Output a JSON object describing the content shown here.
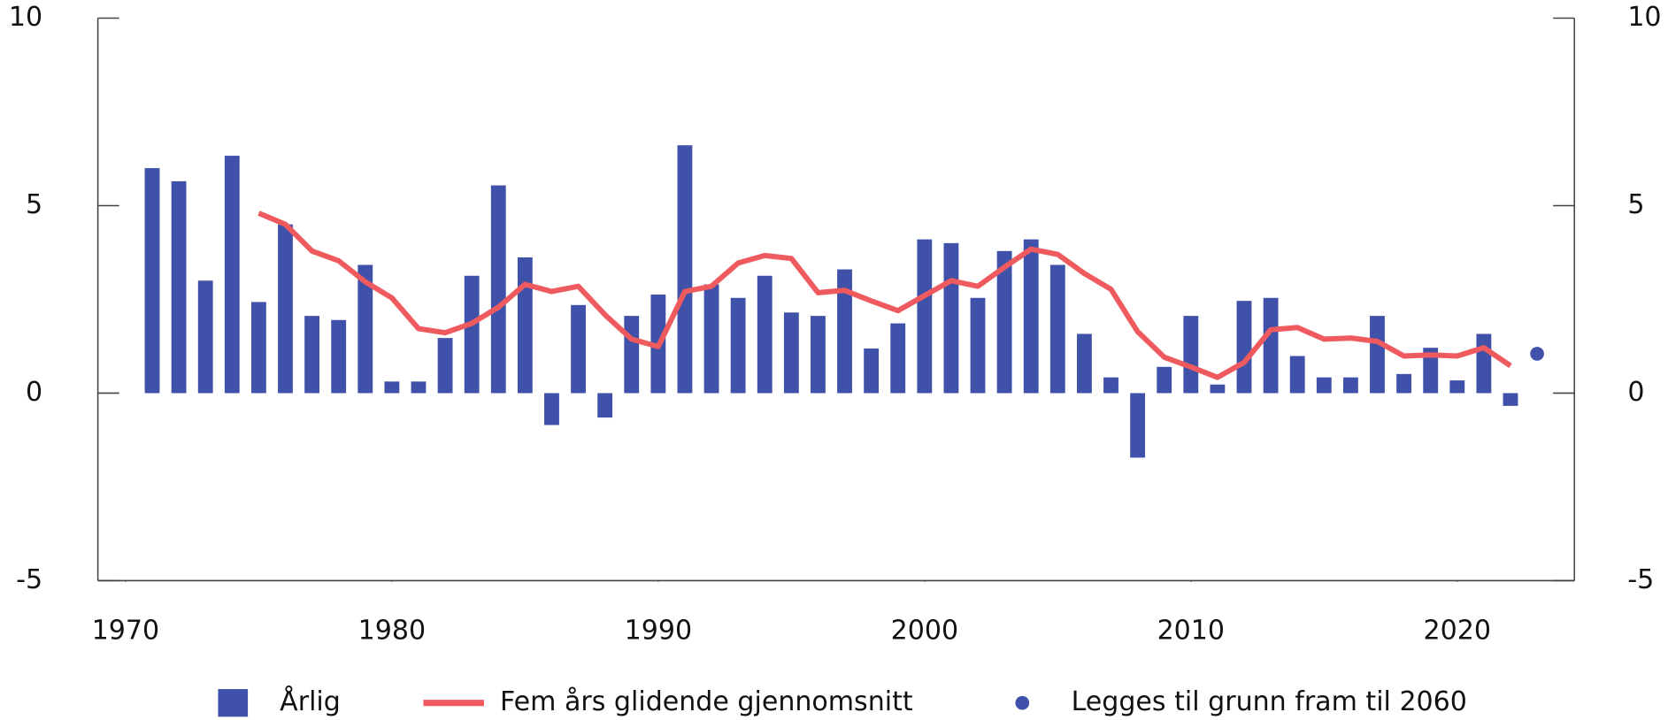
{
  "chart_data": {
    "type": "combo",
    "xlim": [
      1968.96,
      2024.4
    ],
    "xticks": [
      1970,
      1980,
      1990,
      2000,
      2010,
      2020
    ],
    "ylim": [
      -5,
      10
    ],
    "yticks": [
      10,
      5,
      0,
      -5
    ],
    "y2lim": [
      -5,
      10
    ],
    "y2ticks": [
      10,
      5,
      0,
      -5
    ],
    "legend": "bottom",
    "series": [
      {
        "name": "Årlig",
        "type": "bar",
        "color": "#3f51a8",
        "x": [
          1971,
          1972,
          1973,
          1974,
          1975,
          1976,
          1977,
          1978,
          1979,
          1980,
          1981,
          1982,
          1983,
          1984,
          1985,
          1986,
          1987,
          1988,
          1989,
          1990,
          1991,
          1992,
          1993,
          1994,
          1995,
          1996,
          1997,
          1998,
          1999,
          2000,
          2001,
          2002,
          2003,
          2004,
          2005,
          2006,
          2007,
          2008,
          2009,
          2010,
          2011,
          2012,
          2013,
          2014,
          2015,
          2016,
          2017,
          2018,
          2019,
          2020,
          2021,
          2022
        ],
        "values": [
          6.0,
          5.65,
          3.0,
          6.33,
          2.43,
          4.5,
          2.06,
          1.95,
          3.42,
          0.31,
          0.31,
          1.47,
          3.13,
          5.54,
          3.62,
          -0.85,
          2.35,
          -0.65,
          2.06,
          2.63,
          6.61,
          2.9,
          2.54,
          3.13,
          2.15,
          2.06,
          3.3,
          1.19,
          1.86,
          4.1,
          4.0,
          2.54,
          3.79,
          4.1,
          3.42,
          1.58,
          0.42,
          -1.72,
          0.7,
          2.06,
          0.23,
          2.46,
          2.54,
          0.99,
          0.42,
          0.42,
          2.06,
          0.51,
          1.21,
          0.34,
          1.58,
          -0.34
        ]
      },
      {
        "name": "Fem års glidende gjennomsnitt",
        "type": "line",
        "color": "#ef5a5f",
        "x": [
          1975,
          1976,
          1977,
          1978,
          1979,
          1980,
          1981,
          1982,
          1983,
          1984,
          1985,
          1986,
          1987,
          1988,
          1989,
          1990,
          1991,
          1992,
          1993,
          1994,
          1995,
          1996,
          1997,
          1998,
          1999,
          2000,
          2001,
          2002,
          2003,
          2004,
          2005,
          2006,
          2007,
          2008,
          2009,
          2010,
          2011,
          2012,
          2013,
          2014,
          2015,
          2016,
          2017,
          2018,
          2019,
          2020,
          2021,
          2022
        ],
        "values": [
          4.8,
          4.5,
          3.79,
          3.53,
          2.97,
          2.54,
          1.72,
          1.61,
          1.86,
          2.29,
          2.9,
          2.71,
          2.85,
          2.09,
          1.44,
          1.24,
          2.71,
          2.85,
          3.47,
          3.67,
          3.59,
          2.68,
          2.74,
          2.46,
          2.2,
          2.6,
          3.0,
          2.85,
          3.36,
          3.84,
          3.7,
          3.19,
          2.77,
          1.64,
          0.96,
          0.7,
          0.42,
          0.82,
          1.69,
          1.75,
          1.44,
          1.47,
          1.38,
          0.99,
          1.02,
          0.99,
          1.21,
          0.73
        ]
      },
      {
        "name": "Legges til grunn fram til 2060",
        "type": "dot",
        "color": "#3f51a8",
        "x": [
          2023
        ],
        "values": [
          1.05
        ]
      }
    ]
  }
}
